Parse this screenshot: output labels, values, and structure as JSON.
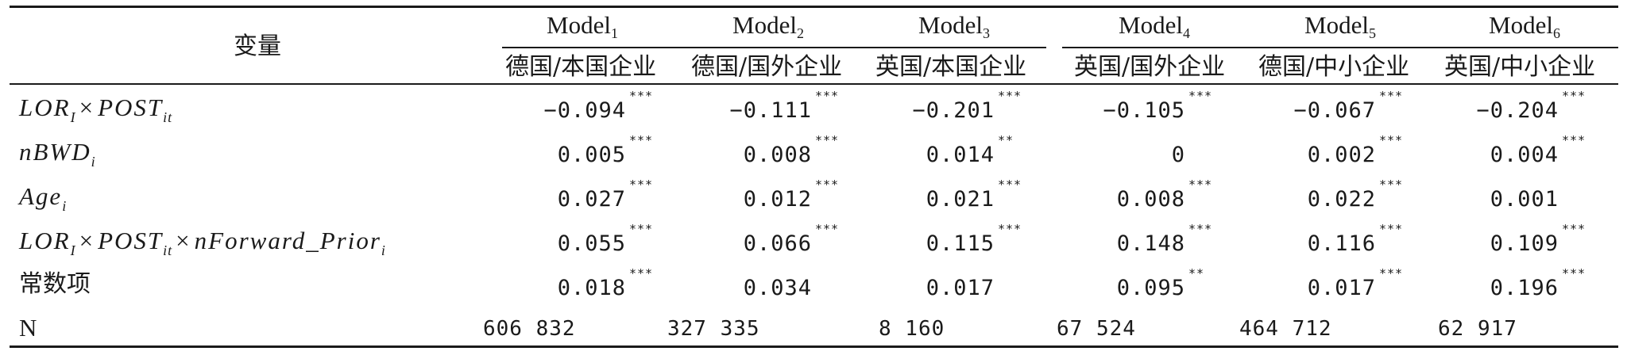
{
  "table": {
    "header": {
      "variable_label": "变量",
      "models": [
        {
          "name": "Model",
          "index": "1",
          "sample": "德国/本国企业"
        },
        {
          "name": "Model",
          "index": "2",
          "sample": "德国/国外企业"
        },
        {
          "name": "Model",
          "index": "3",
          "sample": "英国/本国企业"
        },
        {
          "name": "Model",
          "index": "4",
          "sample": "英国/国外企业"
        },
        {
          "name": "Model",
          "index": "5",
          "sample": "德国/中小企业"
        },
        {
          "name": "Model",
          "index": "6",
          "sample": "英国/中小企业"
        }
      ]
    },
    "rows": [
      {
        "variable": {
          "parts": [
            "LOR",
            "I",
            "×",
            "POST",
            "it"
          ]
        },
        "cells": [
          {
            "value": "−0.094",
            "stars": "***"
          },
          {
            "value": "−0.111",
            "stars": "***"
          },
          {
            "value": "−0.201",
            "stars": "***"
          },
          {
            "value": "−0.105",
            "stars": "***"
          },
          {
            "value": "−0.067",
            "stars": "***"
          },
          {
            "value": "−0.204",
            "stars": "***"
          }
        ]
      },
      {
        "variable": {
          "parts": [
            "nBWD",
            "i"
          ]
        },
        "cells": [
          {
            "value": "0.005",
            "stars": "***"
          },
          {
            "value": "0.008",
            "stars": "***"
          },
          {
            "value": "0.014",
            "stars": "**"
          },
          {
            "value": "0",
            "stars": ""
          },
          {
            "value": "0.002",
            "stars": "***"
          },
          {
            "value": "0.004",
            "stars": "***"
          }
        ]
      },
      {
        "variable": {
          "parts": [
            "Age",
            "i"
          ]
        },
        "cells": [
          {
            "value": "0.027",
            "stars": "***"
          },
          {
            "value": "0.012",
            "stars": "***"
          },
          {
            "value": "0.021",
            "stars": "***"
          },
          {
            "value": "0.008",
            "stars": "***"
          },
          {
            "value": "0.022",
            "stars": "***"
          },
          {
            "value": "0.001",
            "stars": ""
          }
        ]
      },
      {
        "variable": {
          "parts": [
            "LOR",
            "I",
            "×",
            "POST",
            "it",
            "×",
            "nForward_Prior",
            "i"
          ]
        },
        "cells": [
          {
            "value": "0.055",
            "stars": "***"
          },
          {
            "value": "0.066",
            "stars": "***"
          },
          {
            "value": "0.115",
            "stars": "***"
          },
          {
            "value": "0.148",
            "stars": "***"
          },
          {
            "value": "0.116",
            "stars": "***"
          },
          {
            "value": "0.109",
            "stars": "***"
          }
        ]
      },
      {
        "variable": {
          "text": "常数项"
        },
        "cells": [
          {
            "value": "0.018",
            "stars": "***"
          },
          {
            "value": "0.034",
            "stars": ""
          },
          {
            "value": "0.017",
            "stars": ""
          },
          {
            "value": "0.095",
            "stars": "**"
          },
          {
            "value": "0.017",
            "stars": "***"
          },
          {
            "value": "0.196",
            "stars": "***"
          }
        ]
      }
    ],
    "n_row": {
      "label": "N",
      "values": [
        "606 832",
        "327 335",
        "8 160",
        "67 524",
        "464 712",
        "62 917"
      ]
    }
  }
}
